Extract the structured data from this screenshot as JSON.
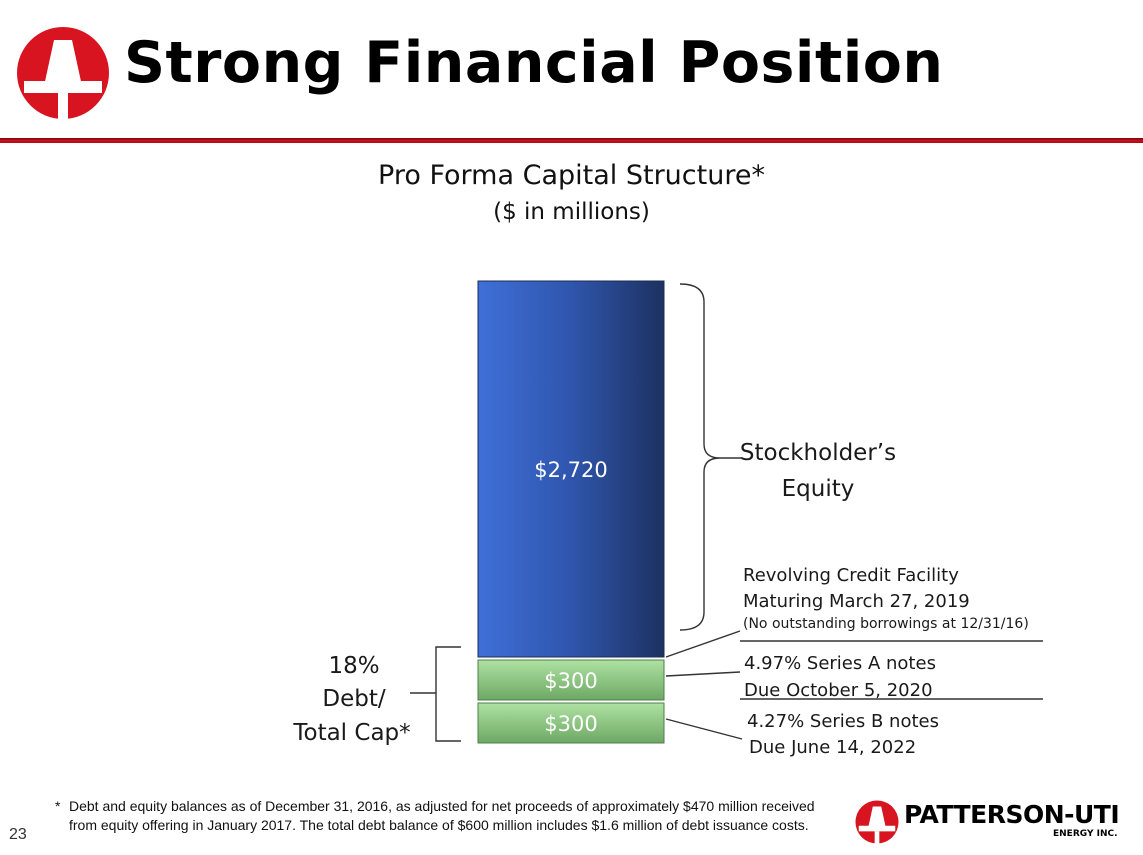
{
  "header": {
    "title": "Strong Financial Position"
  },
  "colors": {
    "brand_red": "#d7141f",
    "equity_blue_light": "#3f6fd8",
    "equity_blue_dark": "#1d3161",
    "debt_green_light": "#aee2a2",
    "debt_green_dark": "#6ea865"
  },
  "chart_data": {
    "type": "bar",
    "stacked": true,
    "title": "Pro Forma Capital Structure*",
    "subtitle": "($ in millions)",
    "categories": [
      ""
    ],
    "series": [
      {
        "name": "Stockholder’s Equity",
        "values": [
          2720
        ],
        "label": "$2,720"
      },
      {
        "name": "4.97% Series A notes",
        "values": [
          300
        ],
        "label": "$300"
      },
      {
        "name": "4.27% Series B notes",
        "values": [
          300
        ],
        "label": "$300"
      }
    ],
    "annotations": {
      "equity_bracket": [
        "Stockholder’s",
        "Equity"
      ],
      "revolver": [
        "Revolving Credit Facility",
        "Maturing March 27, 2019",
        "(No outstanding borrowings at 12/31/16)"
      ],
      "series_a": [
        "4.97% Series A notes",
        "Due October 5, 2020"
      ],
      "series_b": [
        "4.27% Series B notes",
        "Due June 14, 2022"
      ],
      "debt_ratio": [
        "18%",
        "Debt/",
        "Total Cap*"
      ]
    }
  },
  "footer": {
    "footnote_star": "*",
    "footnote": "Debt and equity balances as of December 31, 2016, as adjusted for net proceeds of approximately $470 million received from equity offering in January 2017.  The total debt balance of $600 million includes $1.6 million of debt issuance costs.",
    "page_number": "23",
    "company_name": "PATTERSON-UTI",
    "company_sub": "ENERGY INC."
  }
}
